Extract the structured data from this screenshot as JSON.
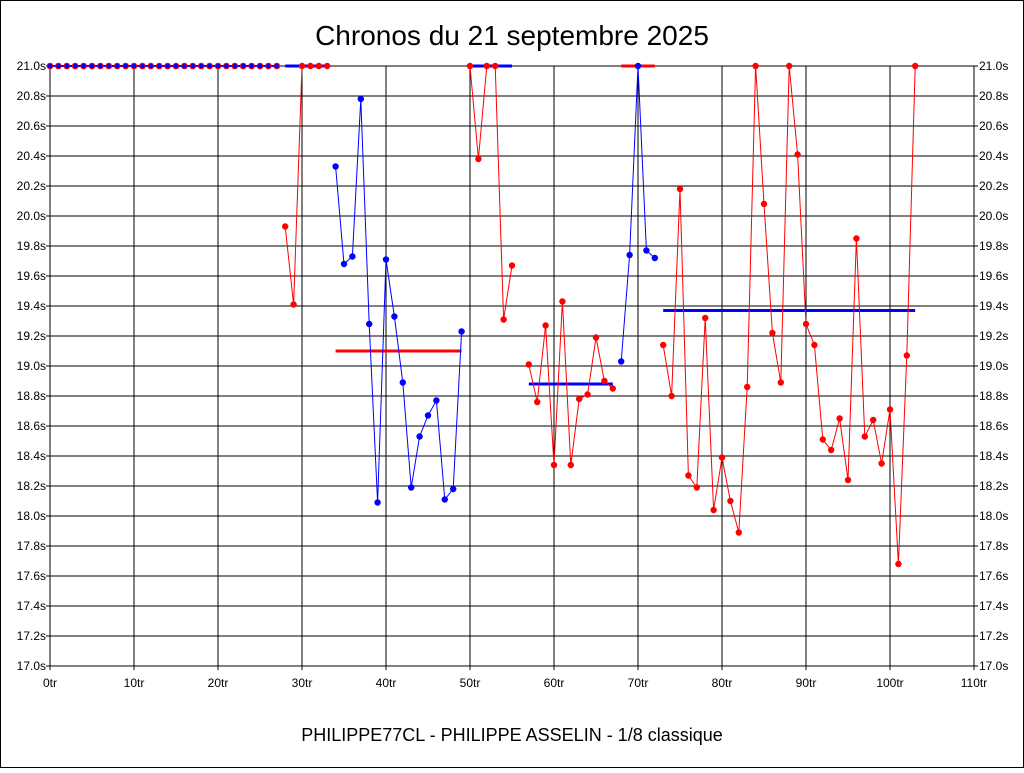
{
  "chart_data": {
    "type": "line",
    "title": "Chronos du 21 septembre 2025",
    "footer": "PHILIPPE77CL - PHILIPPE ASSELIN - 1/8 classique",
    "xlim": [
      0,
      110
    ],
    "ylim": [
      17.0,
      21.0
    ],
    "x_ticks": [
      0,
      10,
      20,
      30,
      40,
      50,
      60,
      70,
      80,
      90,
      100,
      110
    ],
    "x_tick_labels": [
      "0tr",
      "10tr",
      "20tr",
      "30tr",
      "40tr",
      "50tr",
      "60tr",
      "70tr",
      "80tr",
      "90tr",
      "100tr",
      "110tr"
    ],
    "y_ticks": [
      17.0,
      17.2,
      17.4,
      17.6,
      17.8,
      18.0,
      18.2,
      18.4,
      18.6,
      18.8,
      19.0,
      19.2,
      19.4,
      19.6,
      19.8,
      20.0,
      20.2,
      20.4,
      20.6,
      20.8,
      21.0
    ],
    "y_tick_labels": [
      "17.0s",
      "17.2s",
      "17.4s",
      "17.6s",
      "17.8s",
      "18.0s",
      "18.2s",
      "18.4s",
      "18.6s",
      "18.8s",
      "19.0s",
      "19.2s",
      "19.4s",
      "19.6s",
      "19.8s",
      "20.0s",
      "20.2s",
      "20.4s",
      "20.6s",
      "20.8s",
      "21.0s"
    ],
    "grid": true,
    "legend": "none",
    "colors": {
      "red": "#ff0000",
      "blue": "#0000ff",
      "axis": "#000000",
      "grid": "#000000"
    },
    "baseline_points": {
      "x": [
        0,
        1,
        2,
        3,
        4,
        5,
        6,
        7,
        8,
        9,
        10,
        11,
        12,
        13,
        14,
        15,
        16,
        17,
        18,
        19,
        20,
        21,
        22,
        23,
        24,
        25,
        26,
        27
      ],
      "y": 21.0,
      "fill": "#0000ff",
      "stroke": "#ff0000"
    },
    "series": [
      {
        "color": "#ff0000",
        "x": [
          28,
          29,
          30,
          31,
          32,
          33
        ],
        "y": [
          19.93,
          19.41,
          21.0,
          21.0,
          21.0,
          21.0
        ]
      },
      {
        "color": "#0000ff",
        "x": [
          34,
          35,
          36,
          37,
          38,
          39,
          40,
          41,
          42,
          43,
          44,
          45,
          46,
          47,
          48,
          49
        ],
        "y": [
          20.33,
          19.68,
          19.73,
          20.78,
          19.28,
          18.09,
          19.71,
          19.33,
          18.89,
          18.19,
          18.53,
          18.67,
          18.77,
          18.11,
          18.18,
          19.23
        ]
      },
      {
        "color": "#ff0000",
        "x": [
          50,
          51,
          52,
          53,
          54,
          55
        ],
        "y": [
          21.0,
          20.38,
          21.0,
          21.0,
          19.31,
          19.67
        ]
      },
      {
        "color": "#ff0000",
        "x": [
          57,
          58,
          59,
          60,
          61,
          62,
          63,
          64,
          65,
          66,
          67
        ],
        "y": [
          19.01,
          18.76,
          19.27,
          18.34,
          19.43,
          18.34,
          18.78,
          18.81,
          19.19,
          18.9,
          18.85
        ]
      },
      {
        "color": "#0000ff",
        "x": [
          68,
          69,
          70,
          71,
          72
        ],
        "y": [
          19.03,
          19.74,
          21.0,
          19.77,
          19.72
        ]
      },
      {
        "color": "#ff0000",
        "x": [
          73,
          74,
          75,
          76,
          77,
          78,
          79,
          80,
          81,
          82,
          83,
          84,
          85,
          86,
          87,
          88,
          89,
          90,
          91,
          92,
          93,
          94,
          95,
          96,
          97,
          98,
          99,
          100,
          101,
          102,
          103
        ],
        "y": [
          19.14,
          18.8,
          20.18,
          18.27,
          18.19,
          19.32,
          18.04,
          18.39,
          18.1,
          17.89,
          18.86,
          21.0,
          20.08,
          19.22,
          18.89,
          21.0,
          20.41,
          19.28,
          19.14,
          18.51,
          18.44,
          18.65,
          18.24,
          19.85,
          18.53,
          18.64,
          18.35,
          18.71,
          17.68,
          19.07,
          21.0
        ]
      }
    ],
    "average_lines": [
      {
        "color": "#0000ff",
        "x_start": 28,
        "x_end": 33,
        "y": 21.0
      },
      {
        "color": "#ff0000",
        "x_start": 34,
        "x_end": 49,
        "y": 19.1
      },
      {
        "color": "#0000ff",
        "x_start": 50,
        "x_end": 55,
        "y": 21.0
      },
      {
        "color": "#0000ff",
        "x_start": 57,
        "x_end": 67,
        "y": 18.88
      },
      {
        "color": "#ff0000",
        "x_start": 68,
        "x_end": 72,
        "y": 21.0
      },
      {
        "color": "#0000ff",
        "x_start": 73,
        "x_end": 103,
        "y": 19.37
      }
    ]
  }
}
